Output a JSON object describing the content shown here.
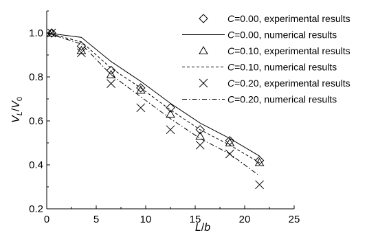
{
  "chart_data": {
    "type": "scatter",
    "title": "",
    "xlabel": {
      "main": "L",
      "sep": "/",
      "sub": "b"
    },
    "ylabel": {
      "num": "V",
      "num_sub": "L",
      "sep": "/",
      "den": "V",
      "den_sub": "0"
    },
    "xlim": [
      0,
      25
    ],
    "ylim": [
      0.2,
      1.1
    ],
    "xticks": [
      0,
      5,
      10,
      15,
      20,
      25
    ],
    "xtick_labels": [
      "0",
      "5",
      "10",
      "15",
      "20",
      "25"
    ],
    "yticks": [
      0.2,
      0.4,
      0.6,
      0.8,
      1.0
    ],
    "ytick_labels": [
      "0.2",
      "0.4",
      "0.6",
      "0.8",
      "1.0"
    ],
    "grid": false,
    "legend_position": "top-right",
    "series": [
      {
        "name": "C=0.00, experimental results",
        "legend_var": "C",
        "legend_rest": "=0.00, experimental results",
        "kind": "markers",
        "marker": "diamond",
        "x": [
          0.5,
          3.5,
          6.5,
          9.5,
          12.5,
          15.5,
          18.5,
          21.5
        ],
        "y": [
          1.0,
          0.94,
          0.83,
          0.75,
          0.66,
          0.56,
          0.51,
          0.42
        ]
      },
      {
        "name": "C=0.00, numerical results",
        "legend_var": "C",
        "legend_rest": "=0.00, numerical results",
        "kind": "line",
        "dash": "solid",
        "x": [
          0,
          3.5,
          6.5,
          9.5,
          12.5,
          15.5,
          18.5,
          21.5
        ],
        "y": [
          1.0,
          0.98,
          0.87,
          0.78,
          0.68,
          0.59,
          0.52,
          0.44
        ]
      },
      {
        "name": "C=0.10, experimental results",
        "legend_var": "C",
        "legend_rest": "=0.10, experimental results",
        "kind": "markers",
        "marker": "triangle",
        "x": [
          0.5,
          3.5,
          6.5,
          9.5,
          12.5,
          15.5,
          18.5,
          21.5
        ],
        "y": [
          1.0,
          0.92,
          0.81,
          0.74,
          0.63,
          0.53,
          0.5,
          0.41
        ]
      },
      {
        "name": "C=0.10, numerical results",
        "legend_var": "C",
        "legend_rest": "=0.10, numerical results",
        "kind": "line",
        "dash": "dashed",
        "x": [
          0,
          3.5,
          6.5,
          9.5,
          12.5,
          15.5,
          18.5,
          21.5
        ],
        "y": [
          1.0,
          0.96,
          0.84,
          0.75,
          0.65,
          0.56,
          0.49,
          0.41
        ]
      },
      {
        "name": "C=0.20, experimental results",
        "legend_var": "C",
        "legend_rest": "=0.20, experimental results",
        "kind": "markers",
        "marker": "x",
        "x": [
          0.5,
          3.5,
          6.5,
          9.5,
          12.5,
          15.5,
          18.5,
          21.5
        ],
        "y": [
          1.0,
          0.91,
          0.77,
          0.66,
          0.56,
          0.49,
          0.45,
          0.31
        ]
      },
      {
        "name": "C=0.20, numerical results",
        "legend_var": "C",
        "legend_rest": "=0.20, numerical results",
        "kind": "line",
        "dash": "dashdot",
        "x": [
          0,
          3.5,
          6.5,
          9.5,
          12.5,
          15.5,
          18.5,
          21.5
        ],
        "y": [
          1.0,
          0.95,
          0.81,
          0.71,
          0.61,
          0.52,
          0.45,
          0.35
        ]
      }
    ]
  }
}
